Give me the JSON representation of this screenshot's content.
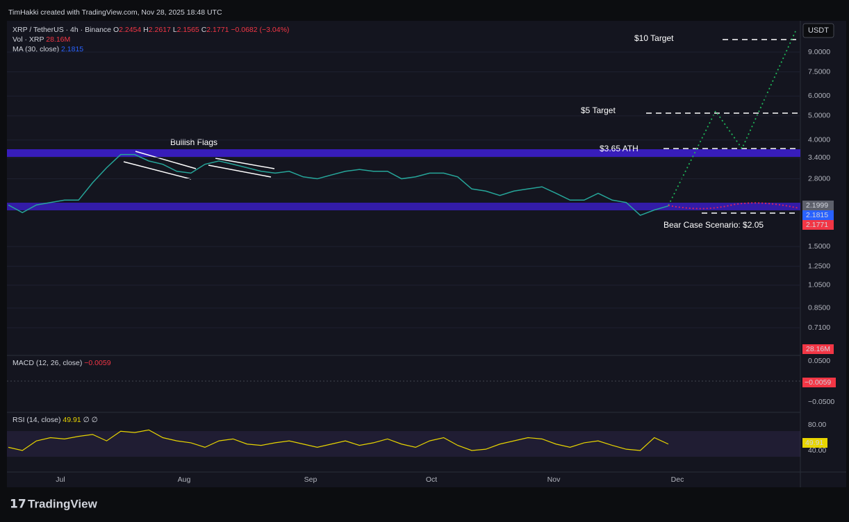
{
  "header": {
    "credit": "TimHakki created with TradingView.com, Nov 28, 2025 18:48 UTC"
  },
  "legend": {
    "symbol": "XRP / TetherUS · 4h · Binance",
    "ohlc": [
      "O",
      "2.2454",
      "H",
      "2.2617",
      "L",
      "2.1565",
      "C",
      "2.1771"
    ],
    "change": "−0.0682 (−3.04%)",
    "volume_label": "Vol · XRP",
    "volume": "28.16M",
    "ma_label": "MA (30, close)",
    "ma": "2.1815"
  },
  "price_axis": {
    "currency": "USDT",
    "ylim": [
      0.55,
      12
    ],
    "log": true,
    "ticks": [
      {
        "value": 9,
        "label": "9.0000"
      },
      {
        "value": 7.5,
        "label": "7.5000"
      },
      {
        "value": 6,
        "label": "6.0000"
      },
      {
        "value": 5,
        "label": "5.0000"
      },
      {
        "value": 4,
        "label": "4.0000"
      },
      {
        "value": 3.4,
        "label": "3.4000"
      },
      {
        "value": 2.8,
        "label": "2.8000"
      },
      {
        "value": 1.5,
        "label": "1.5000"
      },
      {
        "value": 1.25,
        "label": "1.2500"
      },
      {
        "value": 1.05,
        "label": "1.0500"
      },
      {
        "value": 0.85,
        "label": "0.8500"
      },
      {
        "value": 0.71,
        "label": "0.7100"
      }
    ],
    "last_labels": [
      "2.1999",
      "2.1815",
      "2.1771"
    ],
    "volume_last": "28.16M"
  },
  "price": {
    "color": "#26a69a",
    "closes": [
      2.2,
      2.05,
      2.2,
      2.25,
      2.3,
      2.3,
      2.7,
      3.1,
      3.5,
      3.5,
      3.3,
      3.2,
      3.0,
      2.95,
      3.2,
      3.3,
      3.2,
      3.1,
      3.0,
      2.95,
      3.0,
      2.85,
      2.8,
      2.9,
      3.0,
      3.05,
      3.0,
      3.0,
      2.8,
      2.85,
      2.95,
      2.95,
      2.85,
      2.55,
      2.5,
      2.4,
      2.5,
      2.55,
      2.6,
      2.45,
      2.3,
      2.3,
      2.45,
      2.3,
      2.25,
      2.0,
      2.1,
      2.18
    ]
  },
  "annotations": {
    "bullish_flags": "Bullish Flags",
    "target_10": "$10 Target",
    "target_5": "$5 Target",
    "ath": "$3.65 ATH",
    "bear": "Bear Case Scenario: $2.05"
  },
  "macd": {
    "label": "MACD (12, 26, close)",
    "value": "−0.0059",
    "ticks": [
      "0.0500",
      "−0.0500"
    ],
    "last": "−0.0059"
  },
  "rsi": {
    "label": "RSI (14, close)",
    "value": "49.91",
    "extra": "∅ ∅",
    "color": "#e8d500",
    "ticks": [
      {
        "value": 80,
        "label": "80.00"
      },
      {
        "value": 40,
        "label": "40.00"
      }
    ],
    "last": "49.91",
    "values": [
      45,
      40,
      55,
      60,
      58,
      62,
      65,
      55,
      70,
      68,
      72,
      60,
      55,
      52,
      45,
      55,
      58,
      50,
      48,
      52,
      55,
      50,
      45,
      50,
      55,
      48,
      52,
      58,
      50,
      45,
      55,
      60,
      48,
      40,
      42,
      50,
      55,
      60,
      58,
      50,
      45,
      52,
      55,
      48,
      42,
      40,
      60,
      50
    ]
  },
  "time_axis": [
    "Jul",
    "Aug",
    "Sep",
    "Oct",
    "Nov",
    "Dec"
  ],
  "footer": {
    "brand": "TradingView"
  }
}
